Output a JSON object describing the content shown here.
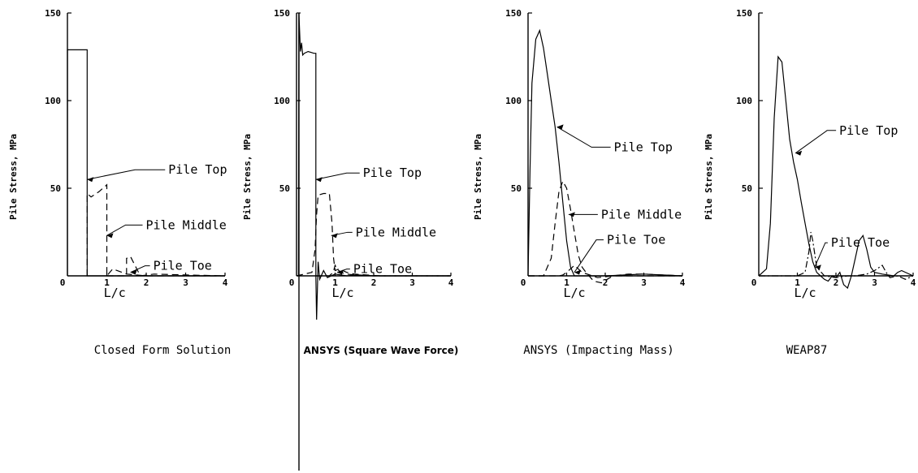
{
  "chart_data": [
    {
      "type": "line",
      "title": "Closed Form Solution",
      "xlabel": "L/c",
      "ylabel": "Pile Stress, MPa",
      "xlim": [
        0,
        4
      ],
      "ylim": [
        0,
        150
      ],
      "xticks": [
        "0",
        "1",
        "2",
        "3",
        "4"
      ],
      "yticks": [
        "50",
        "100",
        "150"
      ],
      "series": [
        {
          "name": "Pile Top",
          "style": "solid",
          "x": [
            0,
            0,
            0.5,
            0.5,
            4.0
          ],
          "y": [
            0,
            129,
            129,
            0,
            0
          ]
        },
        {
          "name": "Pile Middle",
          "style": "dashed",
          "x": [
            0.5,
            0.5,
            0.6,
            0.8,
            1.0,
            1.0,
            1.15,
            1.5,
            2.0,
            4.0
          ],
          "y": [
            0,
            47,
            45,
            48,
            52,
            0,
            4,
            1,
            0,
            0
          ]
        },
        {
          "name": "Pile Toe",
          "style": "dashed",
          "x": [
            1.0,
            1.4,
            1.5,
            1.5,
            1.6,
            1.85,
            2.2,
            3.0,
            4.0
          ],
          "y": [
            0,
            0,
            0,
            10,
            11,
            0,
            1,
            0.5,
            0
          ]
        }
      ],
      "annotations": [
        {
          "text": "Pile Top",
          "x": 0.5,
          "y": 55
        },
        {
          "text": "Pile Middle",
          "x": 1.0,
          "y": 23
        },
        {
          "text": "Pile Toe",
          "x": 1.6,
          "y": 2
        }
      ]
    },
    {
      "type": "line",
      "title": "ANSYS (Square Wave Force)",
      "xlabel": "L/c",
      "ylabel": "Pile Stress, MPa",
      "xlim": [
        0,
        4
      ],
      "ylim": [
        0,
        150
      ],
      "xticks": [
        "0",
        "1",
        "2",
        "3",
        "4"
      ],
      "yticks": [
        "50",
        "100",
        "150"
      ],
      "series": [
        {
          "name": "Pile Top",
          "style": "solid",
          "x": [
            0.05,
            0.06,
            0.1,
            0.13,
            0.16,
            0.2,
            0.3,
            0.45,
            0.5,
            0.5,
            0.52,
            0.56,
            0.6,
            0.7,
            0.8,
            1.0,
            1.3,
            1.6,
            2.0,
            4.0
          ],
          "y": [
            0,
            150,
            128,
            133,
            126,
            127,
            128,
            127,
            127,
            0,
            -25,
            8,
            -2,
            3,
            -1,
            1,
            0,
            0.5,
            0,
            0
          ]
        },
        {
          "name": "Pile Middle",
          "style": "dashed",
          "x": [
            0.0,
            0.4,
            0.48,
            0.52,
            0.56,
            0.7,
            0.85,
            0.92,
            0.96,
            1.0,
            1.1,
            1.3,
            1.5,
            1.8,
            2.2,
            4.0
          ],
          "y": [
            0,
            2,
            15,
            35,
            46,
            47,
            47,
            30,
            10,
            3,
            4,
            2,
            1,
            0.5,
            0,
            0
          ]
        },
        {
          "name": "Pile Toe",
          "style": "dashed",
          "x": [
            0.5,
            0.85,
            0.95,
            1.0,
            1.05,
            1.15,
            1.3,
            1.5,
            2.0,
            4.0
          ],
          "y": [
            0,
            0,
            2,
            6,
            4,
            2,
            1,
            0.5,
            0,
            0
          ]
        }
      ],
      "annotations": [
        {
          "text": "Pile Top",
          "x": 0.5,
          "y": 55
        },
        {
          "text": "Pile Middle",
          "x": 0.9,
          "y": 23
        },
        {
          "text": "Pile Toe",
          "x": 1.05,
          "y": 2
        }
      ]
    },
    {
      "type": "line",
      "title": "ANSYS (Impacting Mass)",
      "xlabel": "L/c",
      "ylabel": "Pile Stress, MPa",
      "xlim": [
        0,
        4
      ],
      "ylim": [
        0,
        150
      ],
      "xticks": [
        "0",
        "1",
        "2",
        "3",
        "4"
      ],
      "yticks": [
        "50",
        "100",
        "150"
      ],
      "series": [
        {
          "name": "Pile Top",
          "style": "solid",
          "x": [
            0.0,
            0.05,
            0.1,
            0.2,
            0.3,
            0.4,
            0.5,
            0.6,
            0.7,
            0.8,
            0.9,
            1.0,
            1.1,
            1.2,
            1.4,
            2.0,
            2.5,
            3.0,
            4.0
          ],
          "y": [
            0,
            60,
            110,
            135,
            140,
            130,
            115,
            100,
            85,
            65,
            42,
            20,
            5,
            0,
            0,
            0,
            0.5,
            1,
            0
          ]
        },
        {
          "name": "Pile Middle",
          "style": "dashed",
          "x": [
            0.0,
            0.4,
            0.6,
            0.7,
            0.8,
            0.9,
            1.0,
            1.1,
            1.2,
            1.3,
            1.4,
            1.5,
            1.7,
            1.9,
            2.2,
            2.6,
            3.0,
            4.0
          ],
          "y": [
            0,
            0,
            10,
            30,
            48,
            54,
            50,
            38,
            25,
            12,
            5,
            2,
            -3,
            -4,
            0,
            1,
            1,
            0
          ]
        },
        {
          "name": "Pile Toe",
          "style": "dashed",
          "x": [
            0.0,
            0.8,
            0.9,
            1.0,
            1.1,
            1.2,
            1.4,
            1.8,
            2.2,
            4.0
          ],
          "y": [
            0,
            0,
            0.5,
            2,
            4,
            6,
            2,
            -1,
            0,
            0
          ]
        }
      ],
      "annotations": [
        {
          "text": "Pile Top",
          "x": 0.75,
          "y": 85
        },
        {
          "text": "Pile Middle",
          "x": 1.05,
          "y": 35
        },
        {
          "text": "Pile Toe",
          "x": 1.2,
          "y": 2
        }
      ]
    },
    {
      "type": "line",
      "title": "WEAP87",
      "xlabel": "L/c",
      "ylabel": "Pile Stress, MPa",
      "xlim": [
        0,
        4
      ],
      "ylim": [
        0,
        150
      ],
      "xticks": [
        "0",
        "1",
        "2",
        "3",
        "4"
      ],
      "yticks": [
        "50",
        "100",
        "150"
      ],
      "series": [
        {
          "name": "Pile Top",
          "style": "solid",
          "x": [
            0.0,
            0.2,
            0.3,
            0.4,
            0.5,
            0.6,
            0.7,
            0.8,
            0.9,
            1.0,
            1.1,
            1.2,
            1.3,
            1.4,
            1.5,
            1.6,
            1.7,
            1.8,
            1.9,
            2.0,
            2.1,
            2.2,
            2.3,
            2.4,
            2.5,
            2.6,
            2.7,
            2.8,
            2.9,
            3.0,
            3.2,
            3.5,
            3.6,
            3.7,
            4.0
          ],
          "y": [
            0,
            4,
            30,
            90,
            125,
            122,
            100,
            78,
            65,
            55,
            42,
            30,
            18,
            8,
            2,
            0,
            -2,
            -3,
            0,
            -1,
            2,
            -5,
            -7,
            0,
            10,
            20,
            23,
            15,
            5,
            2,
            1,
            0,
            2,
            3,
            0
          ]
        },
        {
          "name": "Pile Toe",
          "style": "dashdot",
          "x": [
            0.0,
            1.0,
            1.2,
            1.3,
            1.35,
            1.4,
            1.5,
            1.7,
            2.0,
            2.3,
            2.5,
            2.8,
            3.0,
            3.2,
            3.3,
            3.4,
            3.6,
            3.8,
            4.0
          ],
          "y": [
            0,
            0,
            2,
            14,
            25,
            20,
            5,
            0,
            -1,
            0,
            0,
            1,
            3,
            6,
            2,
            -1,
            0,
            -2,
            0
          ]
        }
      ],
      "annotations": [
        {
          "text": "Pile Top",
          "x": 0.95,
          "y": 70
        },
        {
          "text": "Pile Toe",
          "x": 1.45,
          "y": 5
        }
      ]
    }
  ]
}
